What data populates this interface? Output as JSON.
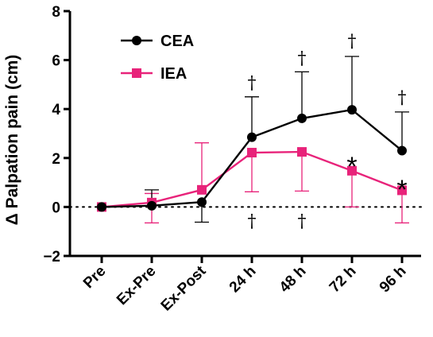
{
  "chart_data": {
    "type": "line",
    "ylabel": "Δ Palpation pain (cm)",
    "xlabel": "",
    "categories": [
      "Pre",
      "Ex-Pre",
      "Ex-Post",
      "24 h",
      "48 h",
      "72 h",
      "96 h"
    ],
    "ylim": [
      -2,
      8
    ],
    "yticks": [
      -2,
      0,
      2,
      4,
      6,
      8
    ],
    "y_tick_labels": [
      "−2",
      "0",
      "2",
      "4",
      "6",
      "8"
    ],
    "zero_reference_line": "dotted",
    "legend_position": "top-left",
    "series": [
      {
        "name": "CEA",
        "color": "#000000",
        "marker": "circle",
        "values": [
          0,
          0.05,
          0.2,
          2.85,
          3.62,
          3.97,
          2.3
        ],
        "error_upper": [
          null,
          0.7,
          null,
          4.5,
          5.52,
          6.15,
          3.88
        ],
        "error_lower": [
          null,
          null,
          -0.62,
          null,
          null,
          null,
          null
        ],
        "error_bar_direction": "up"
      },
      {
        "name": "IEA",
        "color": "#e8237a",
        "marker": "square",
        "values": [
          0,
          0.18,
          0.7,
          2.22,
          2.25,
          1.48,
          0.68
        ],
        "error_upper": [
          null,
          0.55,
          2.62,
          null,
          null,
          null,
          null
        ],
        "error_lower": [
          null,
          -0.65,
          null,
          0.62,
          0.65,
          0.0,
          -0.65
        ],
        "error_bar_direction": "down"
      }
    ],
    "annotations": [
      {
        "text": "†",
        "category": "24 h",
        "y": 5.1,
        "color": "#000000"
      },
      {
        "text": "†",
        "category": "48 h",
        "y": 6.1,
        "color": "#000000"
      },
      {
        "text": "†",
        "category": "72 h",
        "y": 6.8,
        "color": "#000000"
      },
      {
        "text": "†",
        "category": "96 h",
        "y": 4.5,
        "color": "#000000"
      },
      {
        "text": "†",
        "category": "24 h",
        "y": -0.55,
        "color": "#000000"
      },
      {
        "text": "†",
        "category": "48 h",
        "y": -0.55,
        "color": "#000000"
      },
      {
        "text": "*",
        "category": "72 h",
        "y": 2.0,
        "color": "#000000"
      },
      {
        "text": "*",
        "category": "96 h",
        "y": 1.05,
        "color": "#000000"
      }
    ]
  }
}
